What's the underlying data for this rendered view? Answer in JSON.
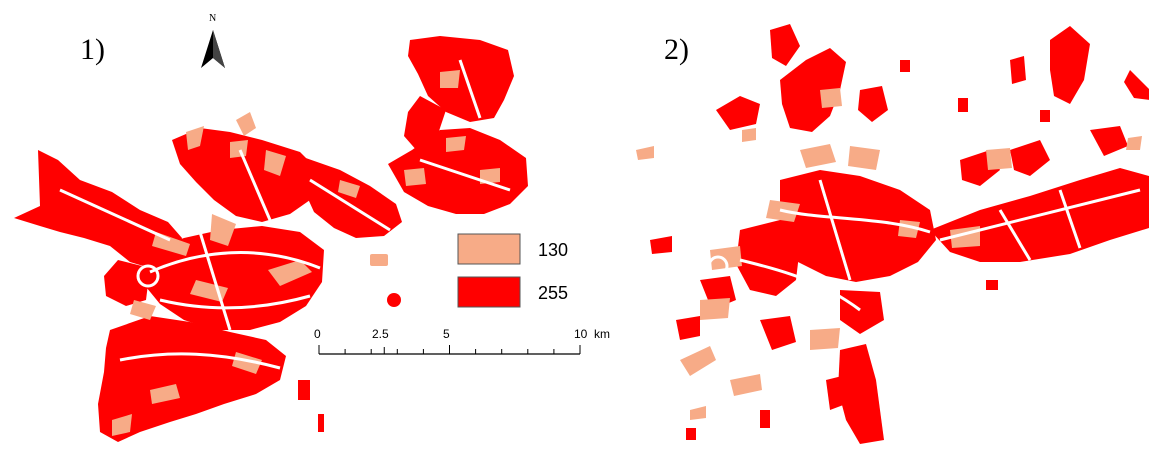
{
  "panels": [
    {
      "label": "1)"
    },
    {
      "label": "2)"
    }
  ],
  "north_arrow": {
    "letter": "N"
  },
  "legend": [
    {
      "value": "130",
      "color": "#F7AB87"
    },
    {
      "value": "255",
      "color": "#FF0000"
    }
  ],
  "scale_bar": {
    "ticks": [
      "0",
      "2.5",
      "5",
      "10"
    ],
    "unit": "km"
  },
  "colors": {
    "class_130": "#F7AB87",
    "class_255": "#FF0000"
  }
}
